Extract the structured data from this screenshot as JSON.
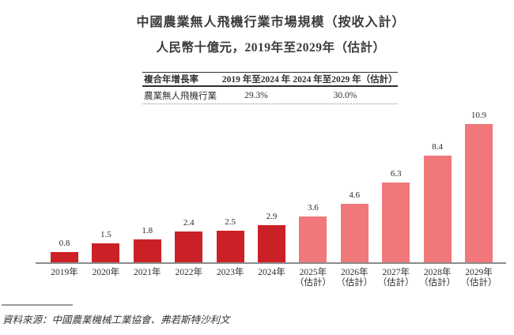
{
  "chart_data": {
    "type": "bar",
    "title": "中國農業無人飛機行業市場規模（按收入計）",
    "subtitle": "人民幣十億元，2019年至2029年（估計）",
    "unit": "人民幣十億元",
    "ylim": [
      0,
      11
    ],
    "grid": false,
    "legend": "none",
    "data_labels": true,
    "bars": [
      {
        "year": "2019年",
        "note": "",
        "value": 0.8,
        "color": "#cc2027"
      },
      {
        "year": "2020年",
        "note": "",
        "value": 1.5,
        "color": "#cc2027"
      },
      {
        "year": "2021年",
        "note": "",
        "value": 1.8,
        "color": "#cc2027"
      },
      {
        "year": "2022年",
        "note": "",
        "value": 2.4,
        "color": "#cc2027"
      },
      {
        "year": "2023年",
        "note": "",
        "value": 2.5,
        "color": "#cc2027"
      },
      {
        "year": "2024年",
        "note": "",
        "value": 2.9,
        "color": "#cc2027"
      },
      {
        "year": "2025年",
        "note": "（估計）",
        "value": 3.6,
        "color": "#f0787a"
      },
      {
        "year": "2026年",
        "note": "（估計）",
        "value": 4.6,
        "color": "#f0787a"
      },
      {
        "year": "2027年",
        "note": "（估計）",
        "value": 6.3,
        "color": "#f0787a"
      },
      {
        "year": "2028年",
        "note": "（估計）",
        "value": 8.4,
        "color": "#f0787a"
      },
      {
        "year": "2029年",
        "note": "（估計）",
        "value": 10.9,
        "color": "#f0787a"
      }
    ]
  },
  "cagr_table": {
    "headers": [
      "複合年增長率",
      "2019 年至2024 年",
      "2024 年至2029 年（估計）"
    ],
    "rows": [
      [
        "農業無人飛機行業",
        "29.3%",
        "30.0%"
      ]
    ]
  },
  "source": "資料來源：中國農業機械工業協會、弗若斯特沙利文",
  "colors": {
    "historical_bar": "#cc2027",
    "forecast_bar": "#f0787a",
    "axis": "#8c8c8c"
  }
}
